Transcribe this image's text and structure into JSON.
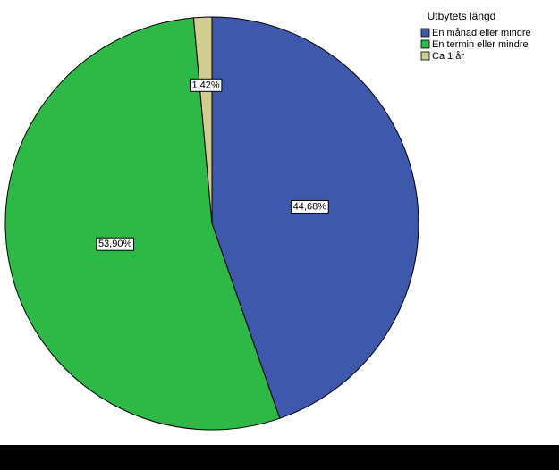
{
  "chart_data": {
    "type": "pie",
    "legend_title": "Utbytets längd",
    "categories": [
      "En månad eller mindre",
      "En termin eller mindre",
      "Ca 1 år"
    ],
    "values": [
      44.68,
      53.9,
      1.42
    ],
    "value_labels": [
      "44,68%",
      "53,90%",
      "1,42%"
    ],
    "colors": [
      "#3e58ac",
      "#2eb848",
      "#d2cc91"
    ],
    "legend": "top-right"
  }
}
